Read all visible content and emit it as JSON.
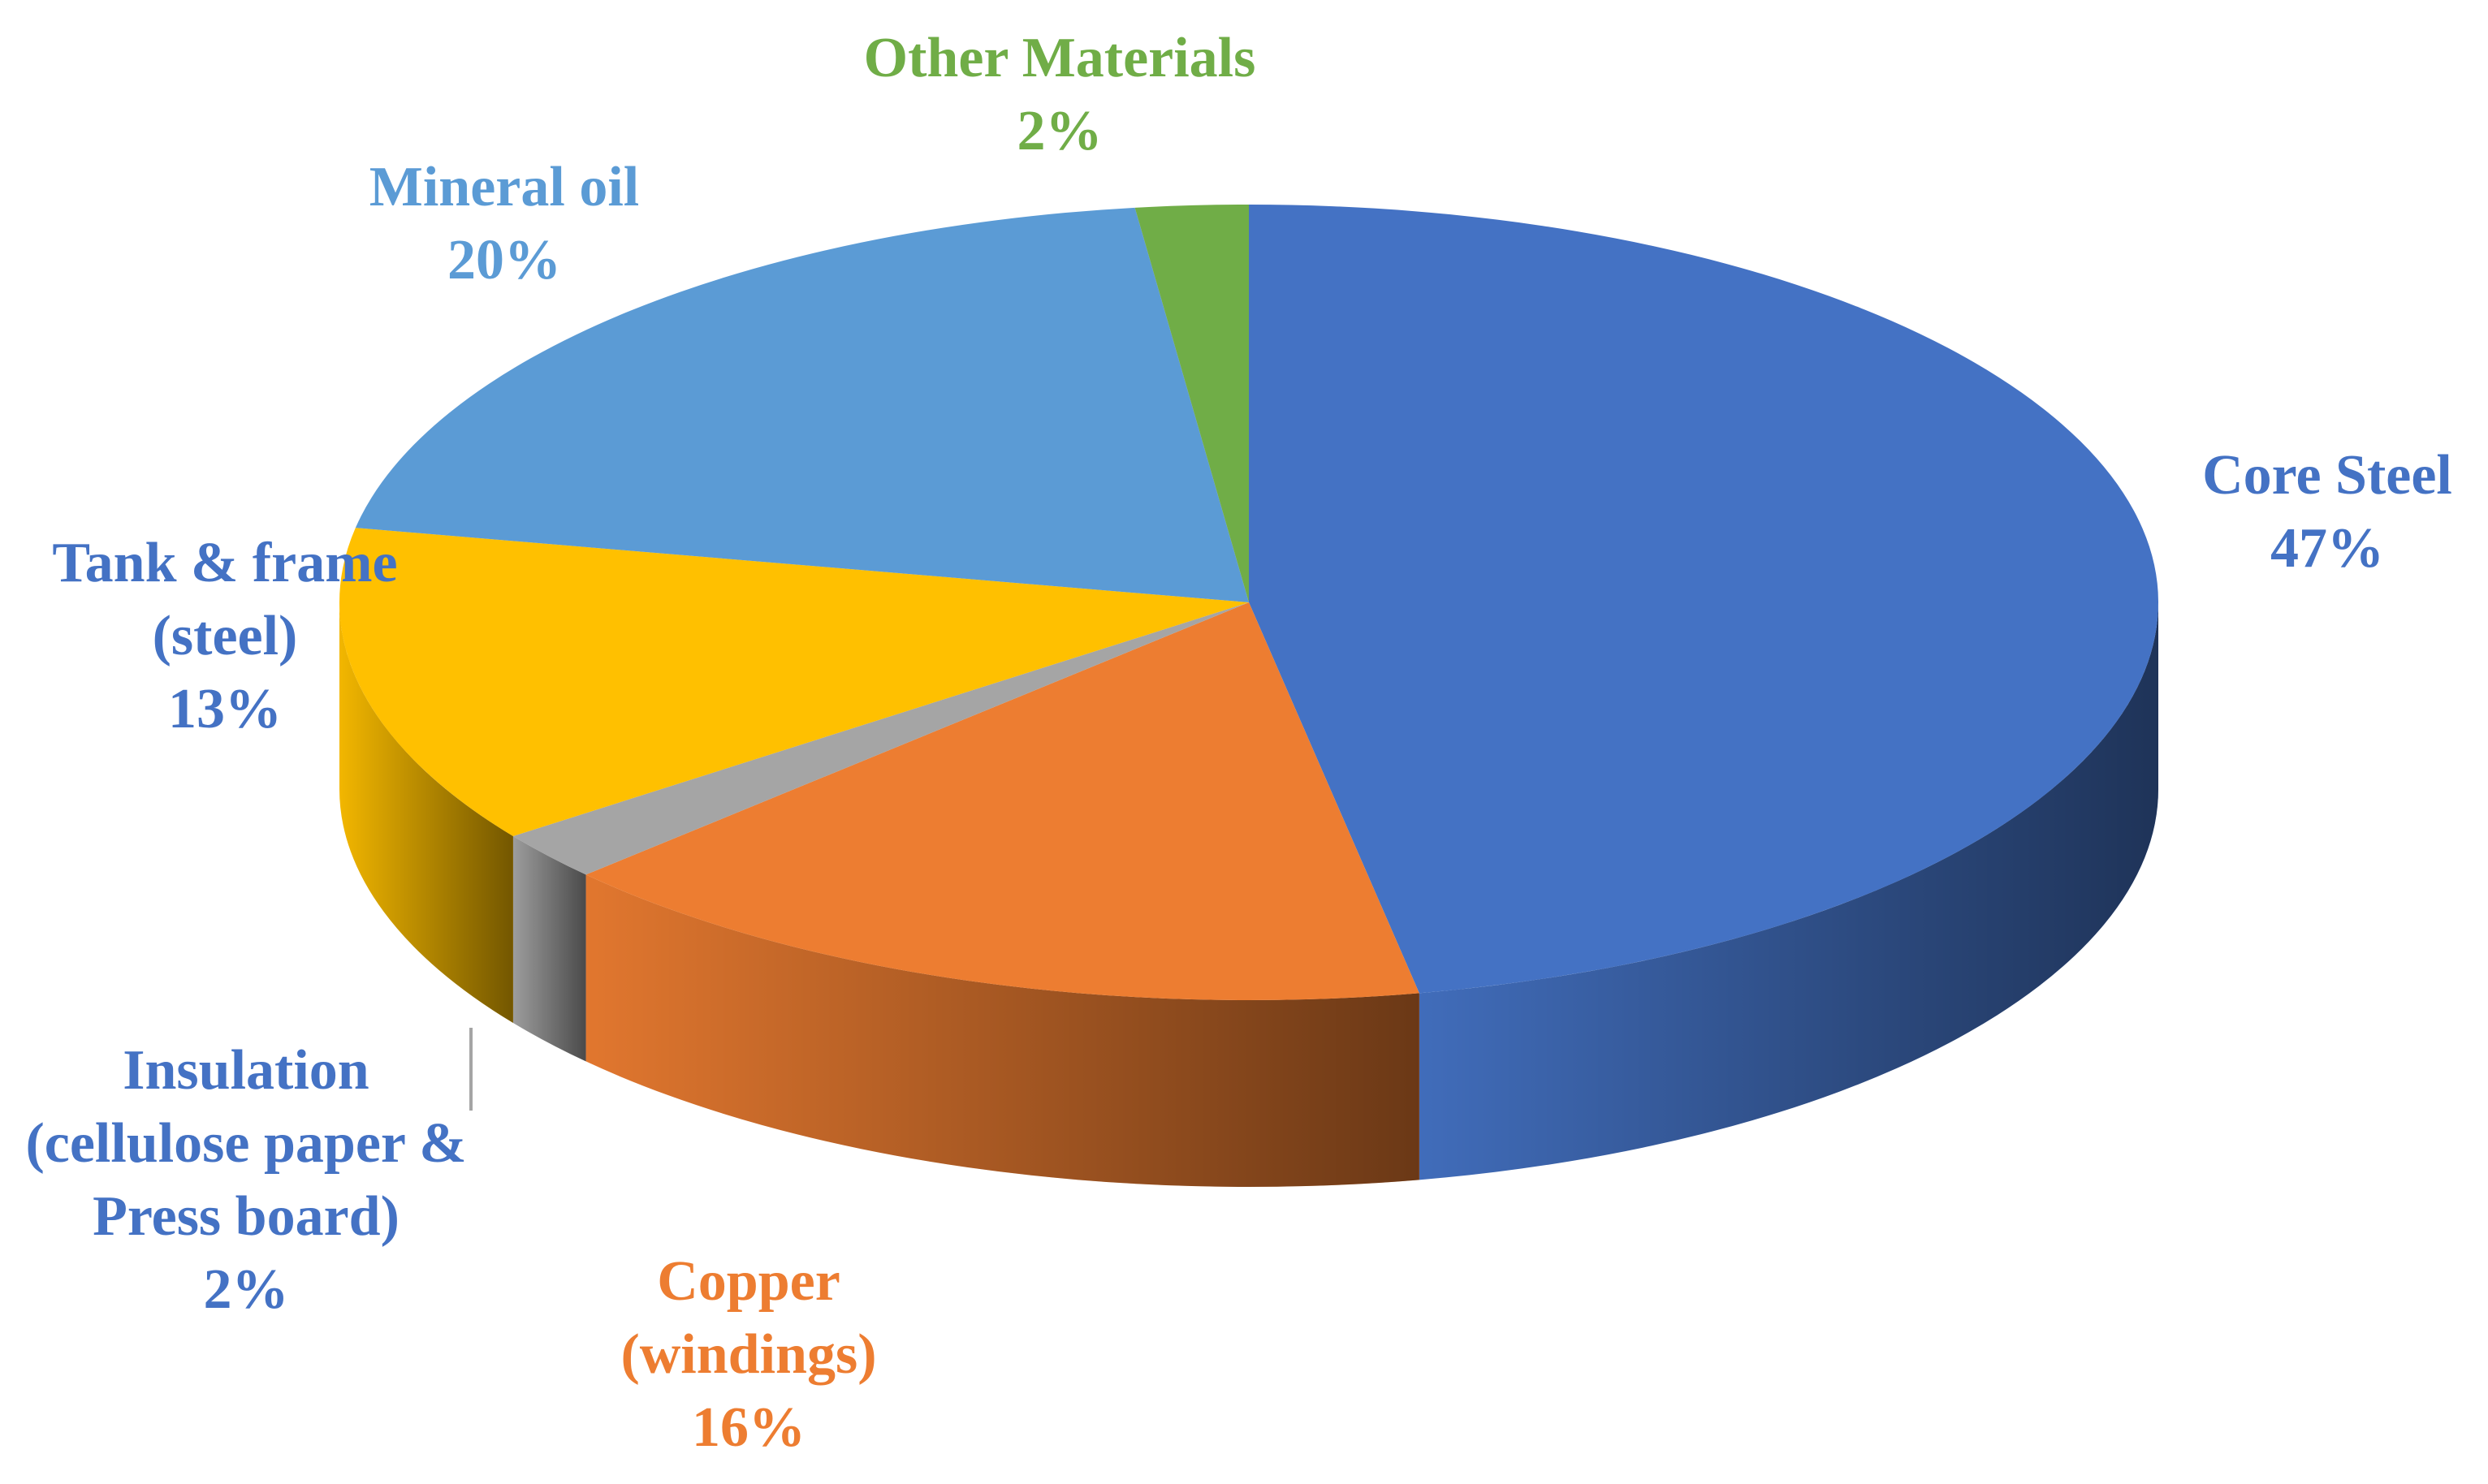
{
  "chart_data": {
    "type": "pie",
    "categories": [
      "Core Steel",
      "Copper (windings)",
      "Insulation (cellulose paper & Press board)",
      "Tank & frame (steel)",
      "Mineral oil",
      "Other Materials"
    ],
    "values": [
      47,
      16,
      2,
      13,
      20,
      2
    ],
    "value_labels": [
      "47%",
      "16%",
      "2%",
      "13%",
      "20%",
      "2%"
    ],
    "colors": [
      "#4472c4",
      "#ed7d31",
      "#a5a5a5",
      "#ffc000",
      "#5b9bd5",
      "#70ad47"
    ]
  }
}
